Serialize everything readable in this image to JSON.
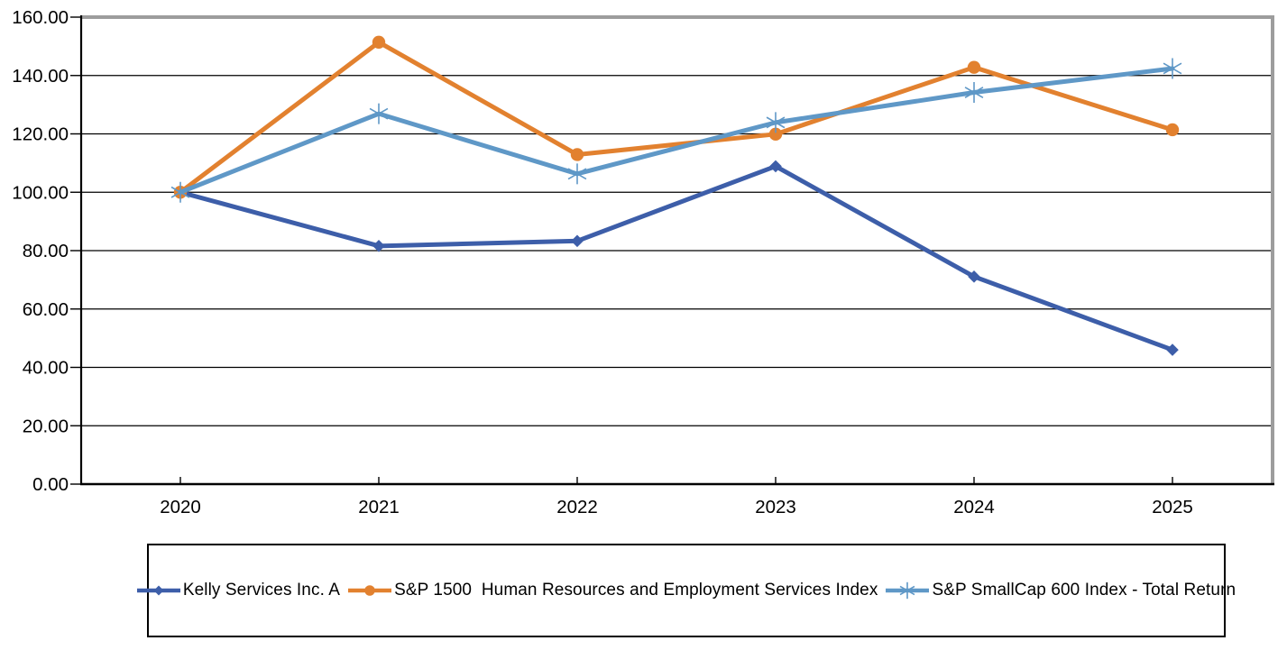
{
  "chart_data": {
    "type": "line",
    "title": "",
    "xlabel": "",
    "ylabel": "",
    "x_categories": [
      "2020",
      "2021",
      "2022",
      "2023",
      "2024",
      "2025"
    ],
    "series": [
      {
        "name": "Kelly Services Inc. A",
        "marker": "diamond",
        "color": "#3D5EA9",
        "values": [
          100.0,
          81.6,
          83.3,
          108.9,
          71.1,
          46.0
        ]
      },
      {
        "name": "S&P 1500  Human Resources and Employment Services Index",
        "marker": "circle",
        "color": "#E2812F",
        "values": [
          100.0,
          151.4,
          112.9,
          119.9,
          142.8,
          121.4
        ]
      },
      {
        "name": "S&P SmallCap 600 Index - Total Return",
        "marker": "asterisk",
        "color": "#5F98C7",
        "values": [
          100.0,
          126.9,
          106.3,
          123.9,
          134.2,
          142.4
        ]
      }
    ],
    "y_ticks": [
      "0.00",
      "20.00",
      "40.00",
      "60.00",
      "80.00",
      "100.00",
      "120.00",
      "140.00",
      "160.00"
    ],
    "ylim": [
      0,
      160
    ],
    "grid": true,
    "legend_position": "bottom"
  },
  "visual": {
    "background": "#FFFFFF",
    "grid_color": "#000000",
    "axis_color": "#000000",
    "plot_border_color": "#9D9D9D",
    "label_color": "#000000"
  }
}
